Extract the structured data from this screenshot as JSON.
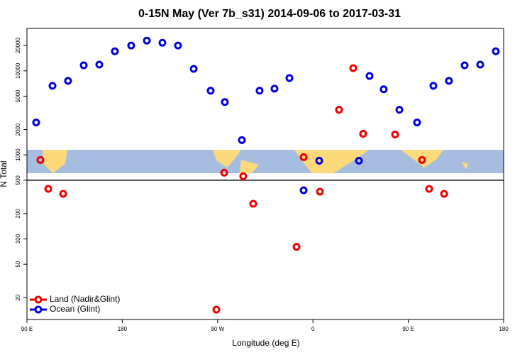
{
  "chart_data": {
    "type": "scatter",
    "title": "0-15N May (Ver 7b_s31)   2014-09-06 to 2017-03-31",
    "x_label": "Longitude (deg E)",
    "y_label": "N Total",
    "log_y": true,
    "xlim": [
      90,
      540
    ],
    "ylim": [
      11,
      32000
    ],
    "xticks": [
      {
        "value": 90,
        "label": "90 E"
      },
      180,
      {
        "value": 270,
        "label": "90 W"
      },
      {
        "value": 360,
        "label": "0"
      },
      {
        "value": 450,
        "label": "90 E"
      },
      {
        "value": 540,
        "label": "180"
      }
    ],
    "yticks": [
      20,
      50,
      100,
      200,
      500,
      1000,
      2000,
      5000,
      10000,
      20000
    ],
    "hline": 500,
    "legend": "bottom-left",
    "series": [
      {
        "name": "Land (Nadir&Glint)",
        "color": "#ee0000",
        "x": [
          102.7,
          110.1,
          124.2,
          268.8,
          276.2,
          294.2,
          303.6,
          344.5,
          351.2,
          366.6,
          384.6,
          398,
          407.4,
          437.6,
          463,
          469.7,
          483.8
        ],
        "values": [
          870,
          394,
          344,
          14.4,
          614,
          557,
          262,
          80.5,
          940,
          365,
          3440,
          10770,
          1780,
          1750,
          870,
          394,
          344
        ]
      },
      {
        "name": "Ocean (Glint)",
        "color": "#0000dd",
        "x": [
          98.7,
          114.1,
          128.8,
          143.6,
          158.3,
          173,
          188.4,
          203.2,
          217.9,
          232.6,
          247.4,
          263.4,
          276.8,
          292.9,
          309.6,
          323.7,
          337.8,
          351.2,
          365.9,
          403.4,
          413.4,
          426.8,
          441.6,
          458.3,
          473.7,
          488.4,
          503.2,
          517.9,
          532.6
        ],
        "values": [
          2430,
          6640,
          7600,
          11640,
          11860,
          17100,
          20000,
          22900,
          21600,
          20000,
          10560,
          5800,
          4250,
          1500,
          5800,
          6140,
          8210,
          379,
          853,
          853,
          8700,
          6030,
          3440,
          2430,
          6640,
          7600,
          11640,
          11860,
          17100
        ]
      }
    ]
  }
}
